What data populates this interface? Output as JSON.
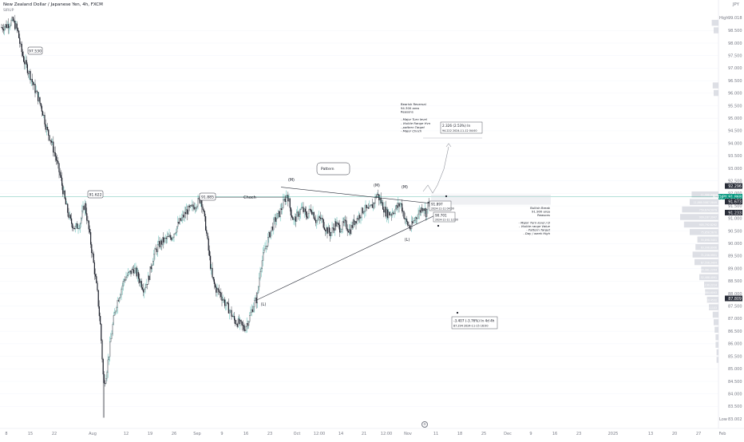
{
  "header": {
    "title": "New Zealand Dollar / Japanese Yen, 4h, FXCM",
    "subtitle": "SIRUP",
    "currency": "JPY"
  },
  "price_axis": {
    "high_label": "High",
    "high_value": "99.018",
    "low_label": "Low",
    "low_value": "83.002",
    "ticks": [
      "98.500",
      "98.000",
      "97.500",
      "97.000",
      "96.500",
      "96.000",
      "95.500",
      "95.000",
      "94.500",
      "94.000",
      "93.500",
      "93.000",
      "92.500",
      "92.000",
      "91.500",
      "91.000",
      "90.500",
      "90.000",
      "89.500",
      "89.000",
      "88.500",
      "88.000",
      "87.500",
      "87.000",
      "86.500",
      "86.000",
      "85.500",
      "85.000",
      "84.500",
      "84.000",
      "83.500"
    ],
    "badges": [
      {
        "text": "92.296",
        "value": 92.296,
        "color": "#2a2e39",
        "text_color": "#ffffff"
      },
      {
        "text": "NZDJPY  91.868",
        "value": 91.868,
        "color": "#089981",
        "text_color": "#ffffff"
      },
      {
        "text": "01:50:56",
        "value": 91.73,
        "color": "#089981",
        "text_color": "#ffffff"
      },
      {
        "text": "91.673",
        "value": 91.673,
        "color": "#2a2e39",
        "text_color": "#ffffff"
      },
      {
        "text": "91.233",
        "value": 91.233,
        "color": "#2a2e39",
        "text_color": "#ffffff"
      },
      {
        "text": "87.809",
        "value": 87.809,
        "color": "#2a2e39",
        "text_color": "#ffffff"
      }
    ]
  },
  "time_axis": {
    "labels": [
      {
        "t": "8",
        "x": 8
      },
      {
        "t": "15",
        "x": 38
      },
      {
        "t": "22",
        "x": 68
      },
      {
        "t": "Aug",
        "x": 116
      },
      {
        "t": "12",
        "x": 158
      },
      {
        "t": "19",
        "x": 188
      },
      {
        "t": "26",
        "x": 218
      },
      {
        "t": "Sep",
        "x": 247
      },
      {
        "t": "9",
        "x": 278
      },
      {
        "t": "16",
        "x": 308
      },
      {
        "t": "23",
        "x": 338
      },
      {
        "t": "Oct",
        "x": 372
      },
      {
        "t": "12:00",
        "x": 400
      },
      {
        "t": "14",
        "x": 427
      },
      {
        "t": "21",
        "x": 456
      },
      {
        "t": "12:00",
        "x": 484
      },
      {
        "t": "Nov",
        "x": 511
      },
      {
        "t": "11",
        "x": 546
      },
      {
        "t": "18",
        "x": 576
      },
      {
        "t": "25",
        "x": 606
      },
      {
        "t": "Dec",
        "x": 636
      },
      {
        "t": "9",
        "x": 665
      },
      {
        "t": "16",
        "x": 695
      },
      {
        "t": "23",
        "x": 725
      },
      {
        "t": "2025",
        "x": 768
      },
      {
        "t": "13",
        "x": 815
      },
      {
        "t": "20",
        "x": 845
      },
      {
        "t": "27",
        "x": 875
      },
      {
        "t": "Feb",
        "x": 905
      }
    ]
  },
  "annotations": {
    "label_97": "97.530",
    "label_91_left": "91.622",
    "label_91_885": "91.885",
    "choch": "Choch",
    "pattern": "Pattern",
    "m1": "(M)",
    "m2": "(M)",
    "m3": "(M)",
    "l1": "(L)",
    "l2": "(L)",
    "bearish_note": [
      "Bearish Reversal",
      "94.300 area",
      "Reasons",
      "",
      "- Major Turn level",
      "- Visible Range Hvn",
      "- pattern Target",
      "- Major Choch"
    ],
    "measure_up_line1": "2.326 (2.53%) In",
    "measure_up_line2": "94.222    2024-11-12  04:00",
    "price_box_1_line1": "91.897",
    "price_box_1_line2": "2024-11-11 04:00",
    "price_box_2_line1": "90.701",
    "price_box_2_line2": "2024-11-11 12:00",
    "bullish_note": [
      "Bullish Break",
      "91.900 area",
      "Reasons",
      "",
      "- Major Turn level / D",
      "- Visible range Value",
      "- Pattern Target",
      "- Day / week High"
    ],
    "measure_down_line1": "-3.407 (-3.76%) In 4d 4h",
    "measure_down_line2": "87.294    2024-11-15  16:00"
  },
  "volume_profile": [
    {
      "price": 91.95,
      "w": 0.28,
      "label": "11,088.8452"
    },
    {
      "price": 91.65,
      "w": 0.3,
      "label": "11,889.5087.0849"
    },
    {
      "price": 91.35,
      "w": 0.38,
      "label": "759,674.5979"
    },
    {
      "price": 91.05,
      "w": 0.4,
      "label": "999,167.3947"
    },
    {
      "price": 90.75,
      "w": 0.36,
      "label": "905,792.8292"
    },
    {
      "price": 90.45,
      "w": 0.3,
      "label": "75,858.5670"
    },
    {
      "price": 90.15,
      "w": 0.22,
      "label": "55,898.3401"
    },
    {
      "price": 89.85,
      "w": 0.24,
      "label": "63,998.8906"
    },
    {
      "price": 89.55,
      "w": 0.27,
      "label": "71,236.9951"
    },
    {
      "price": 89.25,
      "w": 0.25,
      "label": "67,556.3404"
    },
    {
      "price": 88.95,
      "w": 0.18,
      "label": "45,981.2204"
    },
    {
      "price": 88.65,
      "w": 0.2,
      "label": "52,488.4091"
    },
    {
      "price": 88.35,
      "w": 0.15,
      "label": "40,190.2214"
    },
    {
      "price": 88.05,
      "w": 0.14,
      "label": "37,884.6093"
    },
    {
      "price": 87.75,
      "w": 0.12,
      "label": "30,110.4532"
    },
    {
      "price": 87.45,
      "w": 0.1,
      "label": "25,220.1103"
    },
    {
      "price": 87.15,
      "w": 0.06,
      "label": ""
    },
    {
      "price": 86.85,
      "w": 0.05,
      "label": ""
    },
    {
      "price": 86.55,
      "w": 0.04,
      "label": ""
    },
    {
      "price": 86.25,
      "w": 0.03,
      "label": ""
    },
    {
      "price": 85.95,
      "w": 0.03,
      "label": ""
    },
    {
      "price": 85.65,
      "w": 0.02,
      "label": ""
    },
    {
      "price": 85.35,
      "w": 0.02,
      "label": ""
    },
    {
      "price": 96.0,
      "w": 0.05,
      "label": ""
    },
    {
      "price": 96.3,
      "w": 0.06,
      "label": ""
    },
    {
      "price": 98.8,
      "w": 0.07,
      "label": ""
    },
    {
      "price": 98.5,
      "w": 0.05,
      "label": ""
    }
  ],
  "colors": {
    "bull": "#26a69a",
    "bear": "#131722",
    "grid": "#f0f3fa",
    "axis_text": "#787b86",
    "current_line": "#089981"
  }
}
